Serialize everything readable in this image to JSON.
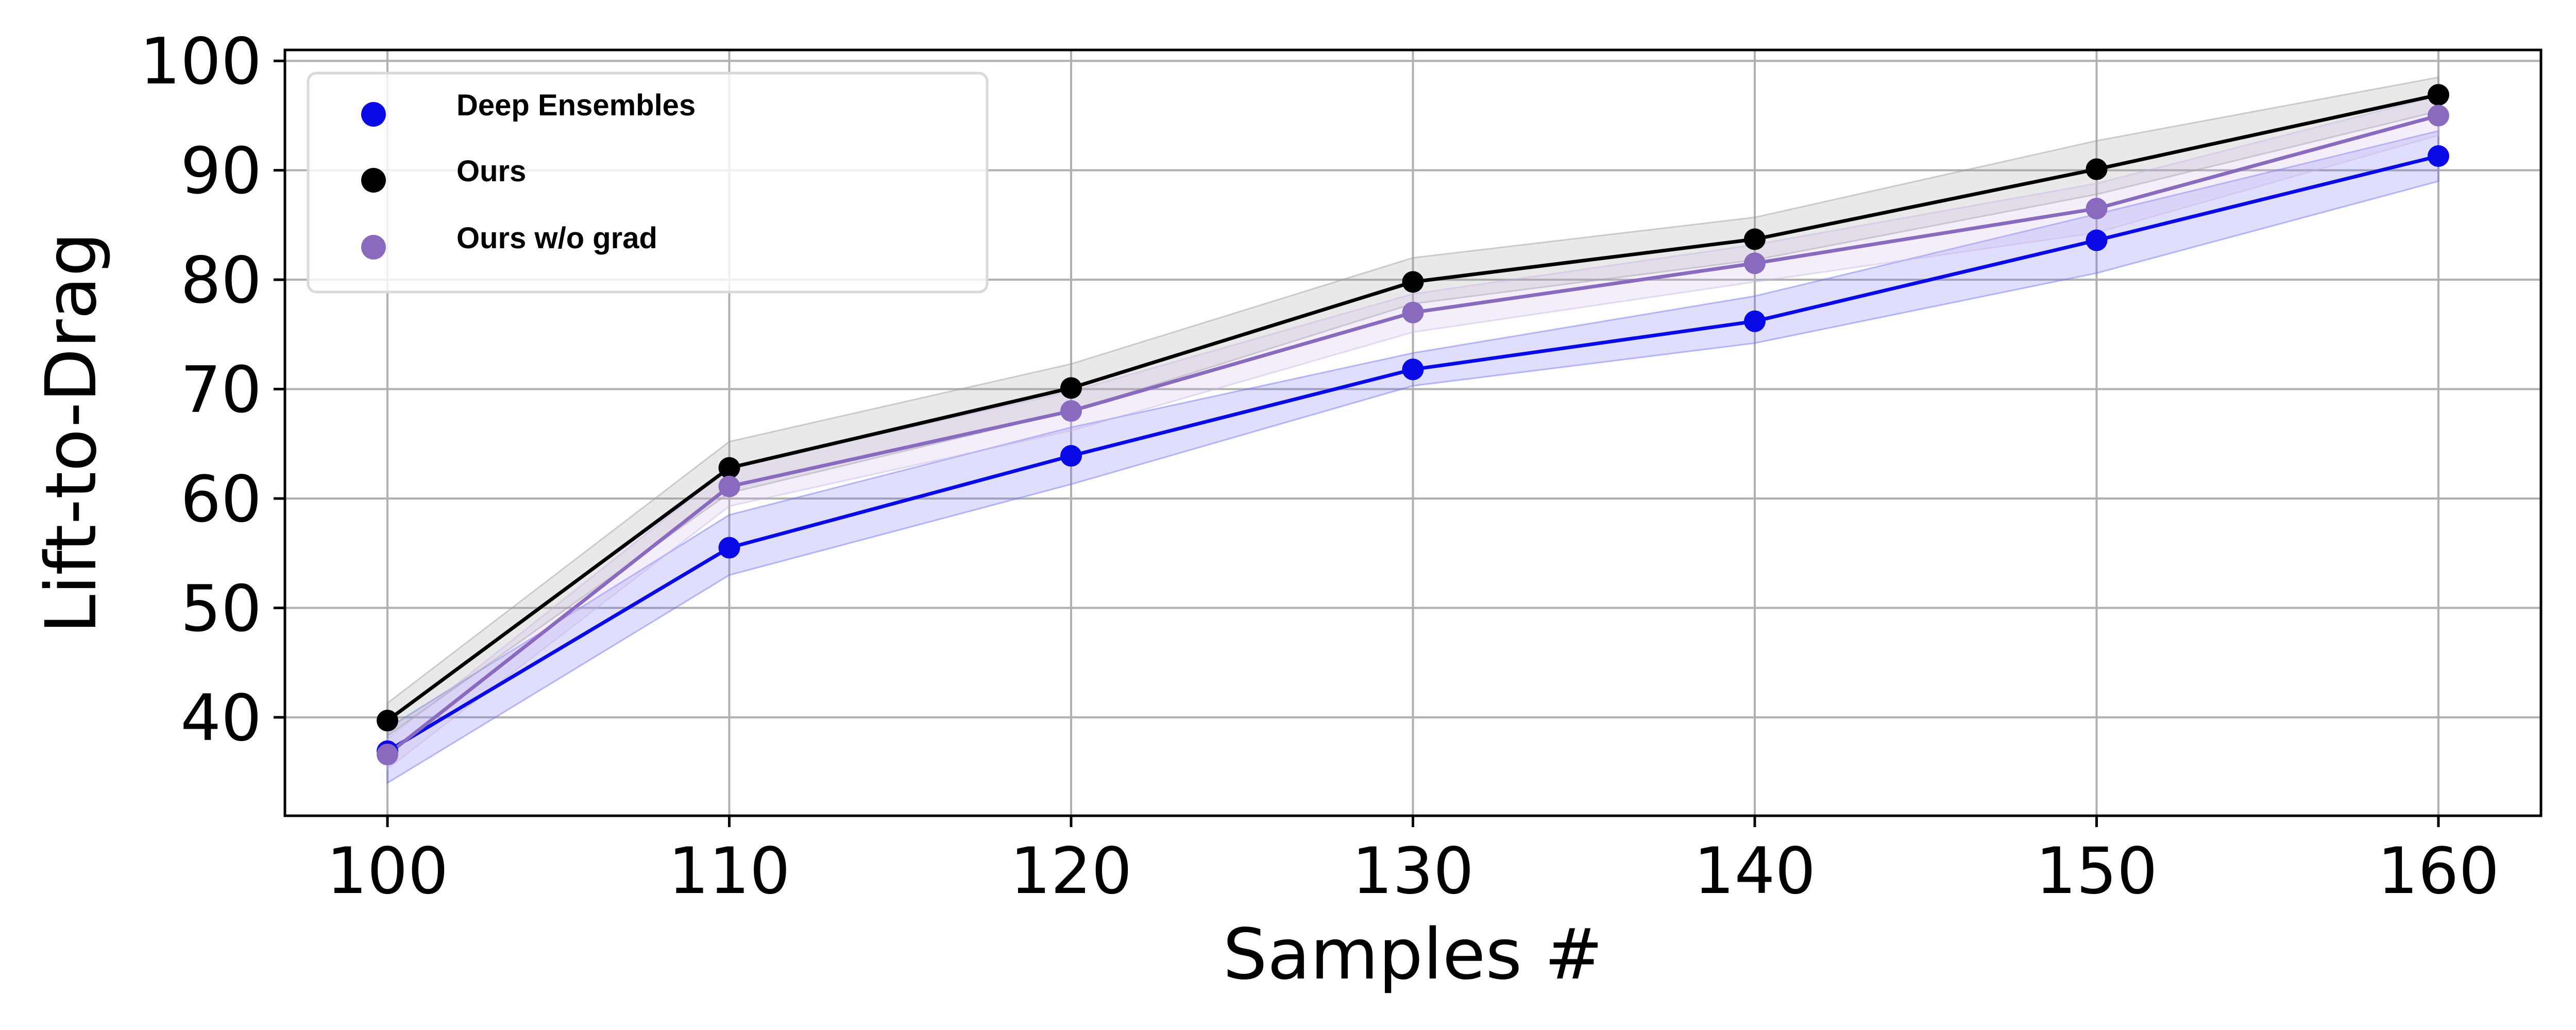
{
  "chart_data": {
    "type": "line",
    "title": "",
    "xlabel": "Samples #",
    "ylabel": "Lift-to-Drag",
    "x": [
      100,
      110,
      120,
      130,
      140,
      150,
      160
    ],
    "xticks": [
      "100",
      "110",
      "120",
      "130",
      "140",
      "150",
      "160"
    ],
    "yticks": [
      "40",
      "50",
      "60",
      "70",
      "80",
      "90",
      "100"
    ],
    "xlim": [
      97,
      163
    ],
    "ylim": [
      31,
      101
    ],
    "grid": true,
    "legend_position": "top-left",
    "series": [
      {
        "name": "Deep Ensembles",
        "color": "#0a0ae6",
        "band_color": "#6d6df5",
        "values": [
          36.9,
          55.5,
          63.9,
          71.8,
          76.2,
          83.6,
          91.3
        ],
        "lower": [
          34.0,
          53.0,
          61.3,
          70.3,
          74.2,
          80.6,
          89.0
        ],
        "upper": [
          39.0,
          58.5,
          66.5,
          73.3,
          78.5,
          86.0,
          93.6
        ]
      },
      {
        "name": "Ours",
        "color": "#000000",
        "band_color": "#9a9a9a",
        "values": [
          39.7,
          62.8,
          70.1,
          79.8,
          83.7,
          90.1,
          96.9
        ],
        "lower": [
          38.3,
          60.5,
          68.0,
          77.8,
          81.8,
          87.8,
          95.4
        ],
        "upper": [
          41.3,
          65.2,
          72.3,
          82.0,
          85.7,
          92.7,
          98.5
        ]
      },
      {
        "name": "Ours w/o grad",
        "color": "#8a6abf",
        "band_color": "#c7b3e6",
        "values": [
          36.6,
          61.1,
          68.0,
          77.0,
          81.5,
          86.5,
          95.0
        ],
        "lower": [
          35.3,
          59.3,
          66.2,
          75.2,
          79.8,
          84.3,
          93.2
        ],
        "upper": [
          38.0,
          62.8,
          69.8,
          78.7,
          83.2,
          88.8,
          96.8
        ]
      }
    ]
  }
}
